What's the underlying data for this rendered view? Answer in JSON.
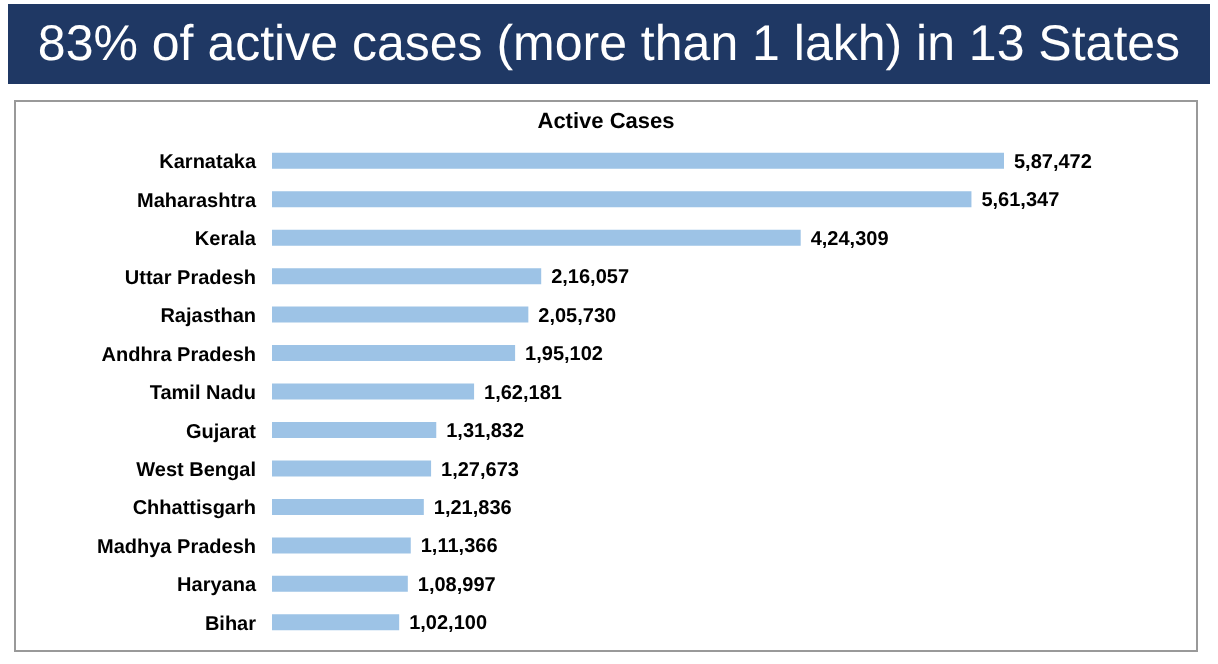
{
  "chart_data": {
    "type": "bar",
    "orientation": "horizontal",
    "title": "83% of active cases (more than 1 lakh) in 13 States",
    "subtitle": "Active Cases",
    "categories": [
      "Karnataka",
      "Maharashtra",
      "Kerala",
      "Uttar Pradesh",
      "Rajasthan",
      "Andhra Pradesh",
      "Tamil Nadu",
      "Gujarat",
      "West Bengal",
      "Chhattisgarh",
      "Madhya Pradesh",
      "Haryana",
      "Bihar"
    ],
    "values": [
      587472,
      561347,
      424309,
      216057,
      205730,
      195102,
      162181,
      131832,
      127673,
      121836,
      111366,
      108997,
      102100
    ],
    "value_labels": [
      "5,87,472",
      "5,61,347",
      "4,24,309",
      "2,16,057",
      "2,05,730",
      "1,95,102",
      "1,62,181",
      "1,31,832",
      "1,27,673",
      "1,21,836",
      "1,11,366",
      "1,08,997",
      "1,02,100"
    ],
    "color": "#9dc3e6"
  }
}
